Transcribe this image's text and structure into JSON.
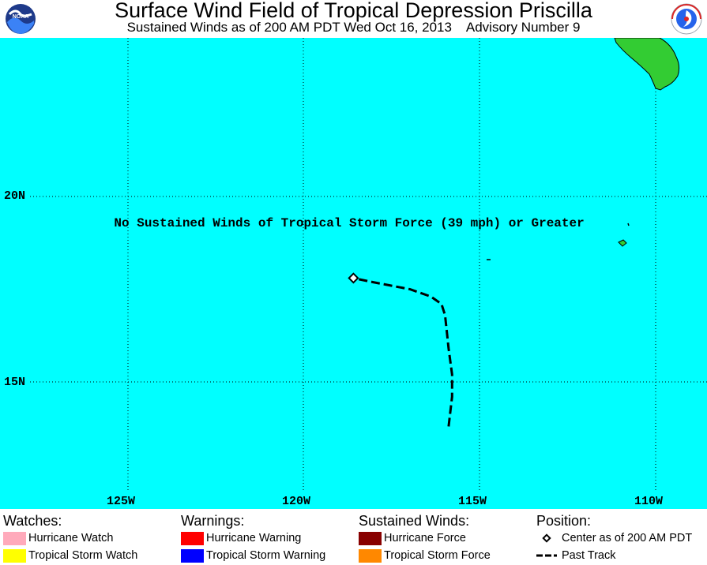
{
  "header": {
    "title": "Surface Wind Field of Tropical Depression Priscilla",
    "subtitle": "Sustained Winds as of 200 AM PDT Wed Oct 16, 2013    Advisory Number 9",
    "left_logo": "noaa-logo",
    "right_logo": "national-weather-service-logo"
  },
  "map": {
    "ocean_color": "#00ffff",
    "land_color": "#33cc33",
    "notice": "No Sustained Winds of Tropical Storm Force (39 mph) or Greater",
    "latitude_labels": [
      "20N",
      "15N"
    ],
    "longitude_labels": [
      "125W",
      "120W",
      "115W",
      "110W"
    ],
    "storm_center": {
      "lat": 17.8,
      "lon": 118.6
    },
    "past_track": [
      {
        "lat": 13.8,
        "lon": 115.9
      },
      {
        "lat": 14.6,
        "lon": 115.8
      },
      {
        "lat": 15.2,
        "lon": 115.8
      },
      {
        "lat": 15.9,
        "lon": 115.9
      },
      {
        "lat": 16.8,
        "lon": 116.0
      },
      {
        "lat": 17.1,
        "lon": 116.1
      },
      {
        "lat": 17.3,
        "lon": 116.4
      },
      {
        "lat": 17.5,
        "lon": 117.0
      },
      {
        "lat": 17.7,
        "lon": 118.1
      },
      {
        "lat": 17.8,
        "lon": 118.6
      }
    ]
  },
  "legend": {
    "watches": {
      "heading": "Watches:",
      "items": [
        {
          "label": "Hurricane Watch",
          "color": "#ffaabb"
        },
        {
          "label": "Tropical Storm Watch",
          "color": "#ffff00"
        }
      ]
    },
    "warnings": {
      "heading": "Warnings:",
      "items": [
        {
          "label": "Hurricane Warning",
          "color": "#ff0000"
        },
        {
          "label": "Tropical Storm Warning",
          "color": "#0000ff"
        }
      ]
    },
    "sustained_winds": {
      "heading": "Sustained Winds:",
      "items": [
        {
          "label": "Hurricane Force",
          "color": "#880000"
        },
        {
          "label": "Tropical Storm Force",
          "color": "#ff8800"
        }
      ]
    },
    "position": {
      "heading": "Position:",
      "items": [
        {
          "label": "Center as of 200 AM PDT",
          "icon": "diamond-icon"
        },
        {
          "label": "Past Track",
          "icon": "dashed-line-icon"
        }
      ]
    }
  }
}
